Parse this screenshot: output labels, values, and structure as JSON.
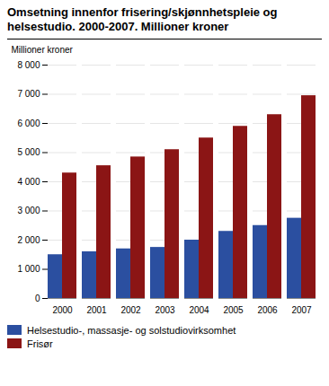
{
  "chart_data": {
    "type": "bar",
    "title": "Omsetning innenfor frisering/skjønnhetspleie og helsestudio. 2000-2007. Millioner kroner",
    "ylabel": "Millioner kroner",
    "categories": [
      "2000",
      "2001",
      "2002",
      "2003",
      "2004",
      "2005",
      "2006",
      "2007"
    ],
    "series": [
      {
        "name": "Helsestudio-, massasje- og solstudiovirksomhet",
        "color": "#2b4fa0",
        "values": [
          1500,
          1600,
          1700,
          1750,
          2000,
          2300,
          2500,
          2750
        ]
      },
      {
        "name": "Frisør",
        "color": "#8b1515",
        "values": [
          4300,
          4550,
          4850,
          5100,
          5500,
          5900,
          6300,
          6950
        ]
      }
    ],
    "ylim": [
      0,
      8000
    ],
    "yticks": [
      0,
      {
        "value": 1000,
        "label": "1 000"
      },
      {
        "value": 2000,
        "label": "2 000"
      },
      {
        "value": 3000,
        "label": "3 000"
      },
      {
        "value": 4000,
        "label": "4 000"
      },
      {
        "value": 5000,
        "label": "5 000"
      },
      {
        "value": 6000,
        "label": "6 000"
      },
      {
        "value": 7000,
        "label": "7 000"
      },
      {
        "value": 8000,
        "label": "8 000"
      }
    ],
    "grid": true,
    "legend": "bottom"
  }
}
